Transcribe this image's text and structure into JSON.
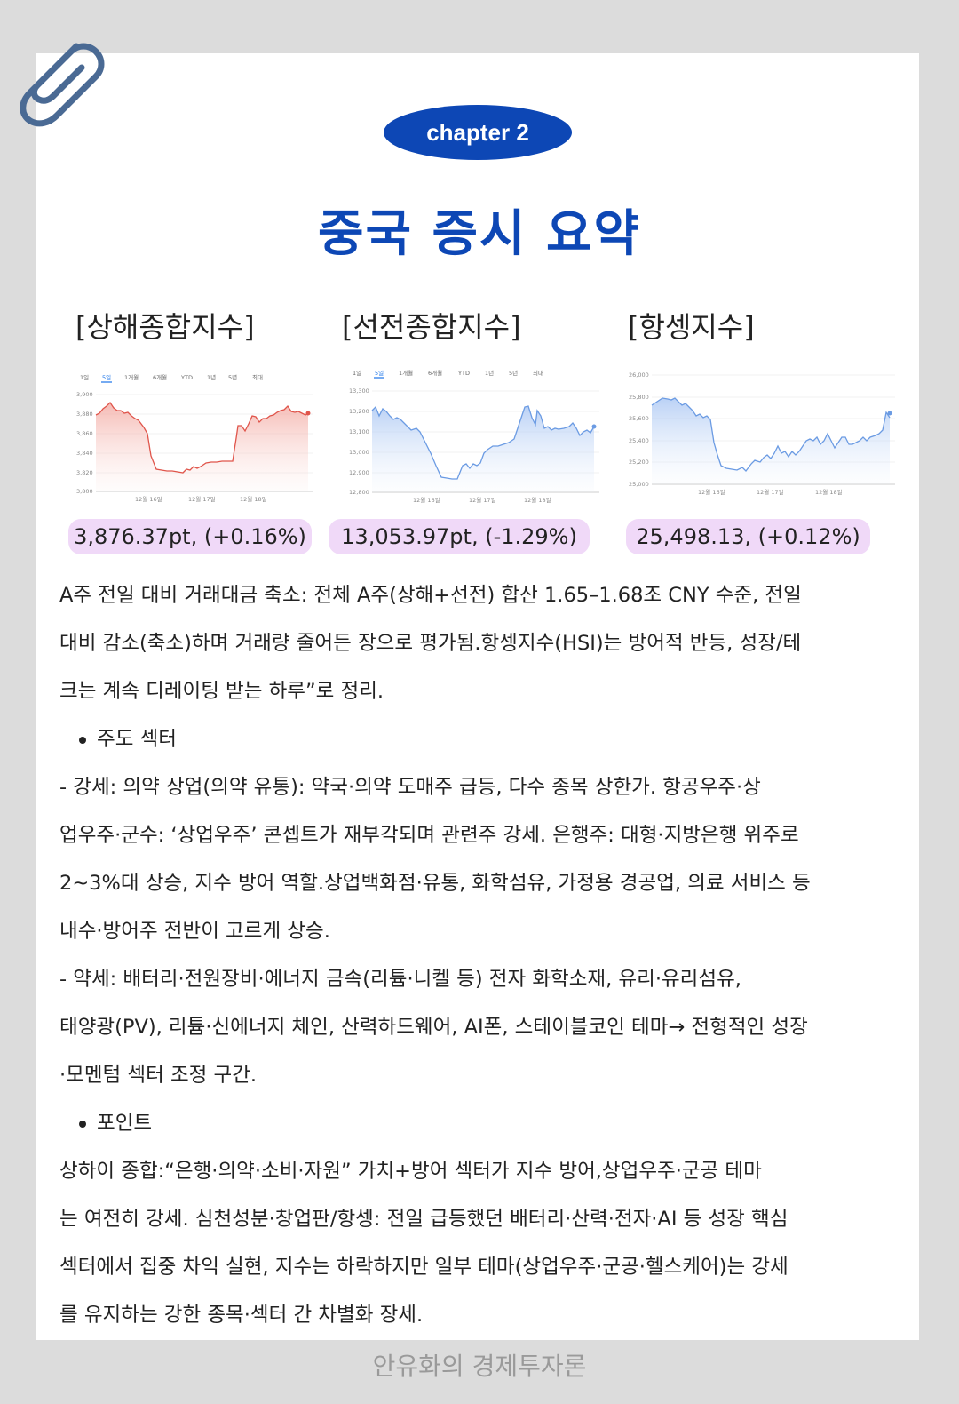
{
  "header": {
    "chapter_label": "chapter 2",
    "title": "중국 증시 요약"
  },
  "icons": {
    "clip": "paperclip-icon"
  },
  "colors": {
    "accent": "#0d47b5",
    "pill_bg": "#f0d9f8",
    "red_line": "#e0554b",
    "blue_line": "#6b9be3"
  },
  "indices": [
    {
      "name": "[상해종합지수]",
      "value": "3,876.37pt, (+0.16%)",
      "chart": {
        "tabs": [
          "1일",
          "5일",
          "1개월",
          "6개월",
          "YTD",
          "1년",
          "5년",
          "최대"
        ],
        "active_tab": "5일",
        "y_ticks": [
          "3,900",
          "3,880",
          "3,860",
          "3,840",
          "3,820",
          "3,800"
        ],
        "x_ticks": [
          "12월 16일",
          "12월 17일",
          "12월 18일"
        ]
      }
    },
    {
      "name": "[선전종합지수]",
      "value": "13,053.97pt, (-1.29%)",
      "chart": {
        "tabs": [
          "1일",
          "5일",
          "1개월",
          "6개월",
          "YTD",
          "1년",
          "5년",
          "최대"
        ],
        "active_tab": "5일",
        "y_ticks": [
          "13,300",
          "13,200",
          "13,100",
          "13,000",
          "12,900",
          "12,800"
        ],
        "x_ticks": [
          "12월 16일",
          "12월 17일",
          "12월 18일"
        ]
      }
    },
    {
      "name": "[항셍지수]",
      "value": "25,498.13, (+0.12%)",
      "chart": {
        "y_ticks": [
          "26,000",
          "25,800",
          "25,600",
          "25,400",
          "25,200",
          "25,000"
        ],
        "x_ticks": [
          "12월 16일",
          "12월 17일",
          "12월 18일"
        ]
      }
    }
  ],
  "body": {
    "intro": [
      " A주 전일 대비 거래대금 축소: 전체 A주(상해+선전) 합산 1.65–1.68조 CNY 수준, 전일",
      "대비 감소(축소)하며 거래량 줄어든 장으로 평가됨.항셍지수(HSI)는 방어적 반등, 성장/테",
      "크는 계속 디레이팅 받는 하루”로 정리."
    ],
    "section1_title": "주도 섹터",
    "section1": [
      "     -  강세: 의약 상업(의약 유통): 약국·의약 도매주 급등, 다수 종목 상한가. 항공우주·상",
      "업우주·군수: ‘상업우주’ 콘셉트가 재부각되며 관련주 강세. 은행주: 대형·지방은행 위주로",
      "2~3%대 상승, 지수 방어 역할.상업백화점·유통, 화학섬유, 가정용 경공업, 의료 서비스 등",
      "내수·방어주 전반이 고르게 상승.",
      "     - 약세: 배터리·전원장비·에너지 금속(리튬·니켈 등) 전자 화학소재, 유리·유리섬유,",
      "태양광(PV), 리튬·신에너지 체인, 산력하드웨어, AI폰, 스테이블코인 테마→ 전형적인 성장",
      "·모멘텀 섹터 조정 구간."
    ],
    "section2_title": "포인트",
    "section2": [
      "      상하이 종합:“은행·의약·소비·자원” 가치+방어 섹터가 지수 방어,상업우주·군공 테마",
      "는 여전히 강세. 심천성분·창업판/항셍: 전일 급등했던 배터리·산력·전자·AI 등 성장 핵심",
      "섹터에서 집중 차익 실현, 지수는 하락하지만 일부 테마(상업우주·군공·헬스케어)는 강세",
      "를 유지하는 강한 종목·섹터 간 차별화 장세."
    ]
  },
  "footer": {
    "text": "안유화의 경제투자론"
  }
}
